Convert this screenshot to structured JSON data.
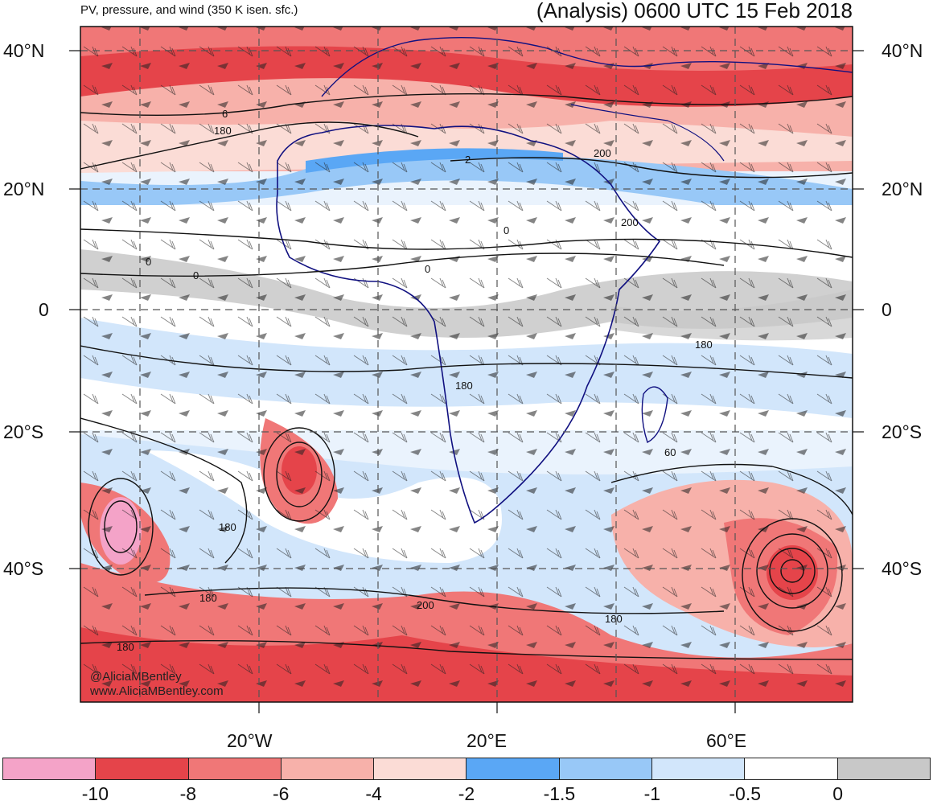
{
  "header": {
    "title_left": "PV, pressure, and wind (350 K isen. sfc.)",
    "title_right": "(Analysis) 0600 UTC 15 Feb 2018"
  },
  "map": {
    "projection": "cylindrical equidistant",
    "lat_labels": [
      "40°N",
      "20°N",
      "0",
      "20°S",
      "40°S"
    ],
    "lon_labels": [
      "20°W",
      "20°E",
      "60°E"
    ],
    "contour_labels": [
      "6",
      "180",
      "2",
      "200",
      "0",
      "0",
      "0",
      "0",
      "180",
      "180",
      "200",
      "180",
      "60",
      "180",
      "180",
      "200",
      "180"
    ],
    "colors": {
      "land_outline": "#101080",
      "grid": "#555555",
      "contour": "#111111"
    }
  },
  "legend": {
    "colors": [
      "#f4a3c8",
      "#e5444a",
      "#f07777",
      "#f7b1aa",
      "#fbdcd6",
      "#5aa7f5",
      "#98c8f7",
      "#d2e6fb",
      "#ffffff",
      "#c8c8c8"
    ],
    "labels": [
      "-10",
      "-8",
      "-6",
      "-4",
      "-2",
      "-1.5",
      "-1",
      "-0.5",
      "0"
    ]
  },
  "credits": {
    "handle": "@AliciaMBentley",
    "website": "www.AliciaMBentley.com"
  }
}
